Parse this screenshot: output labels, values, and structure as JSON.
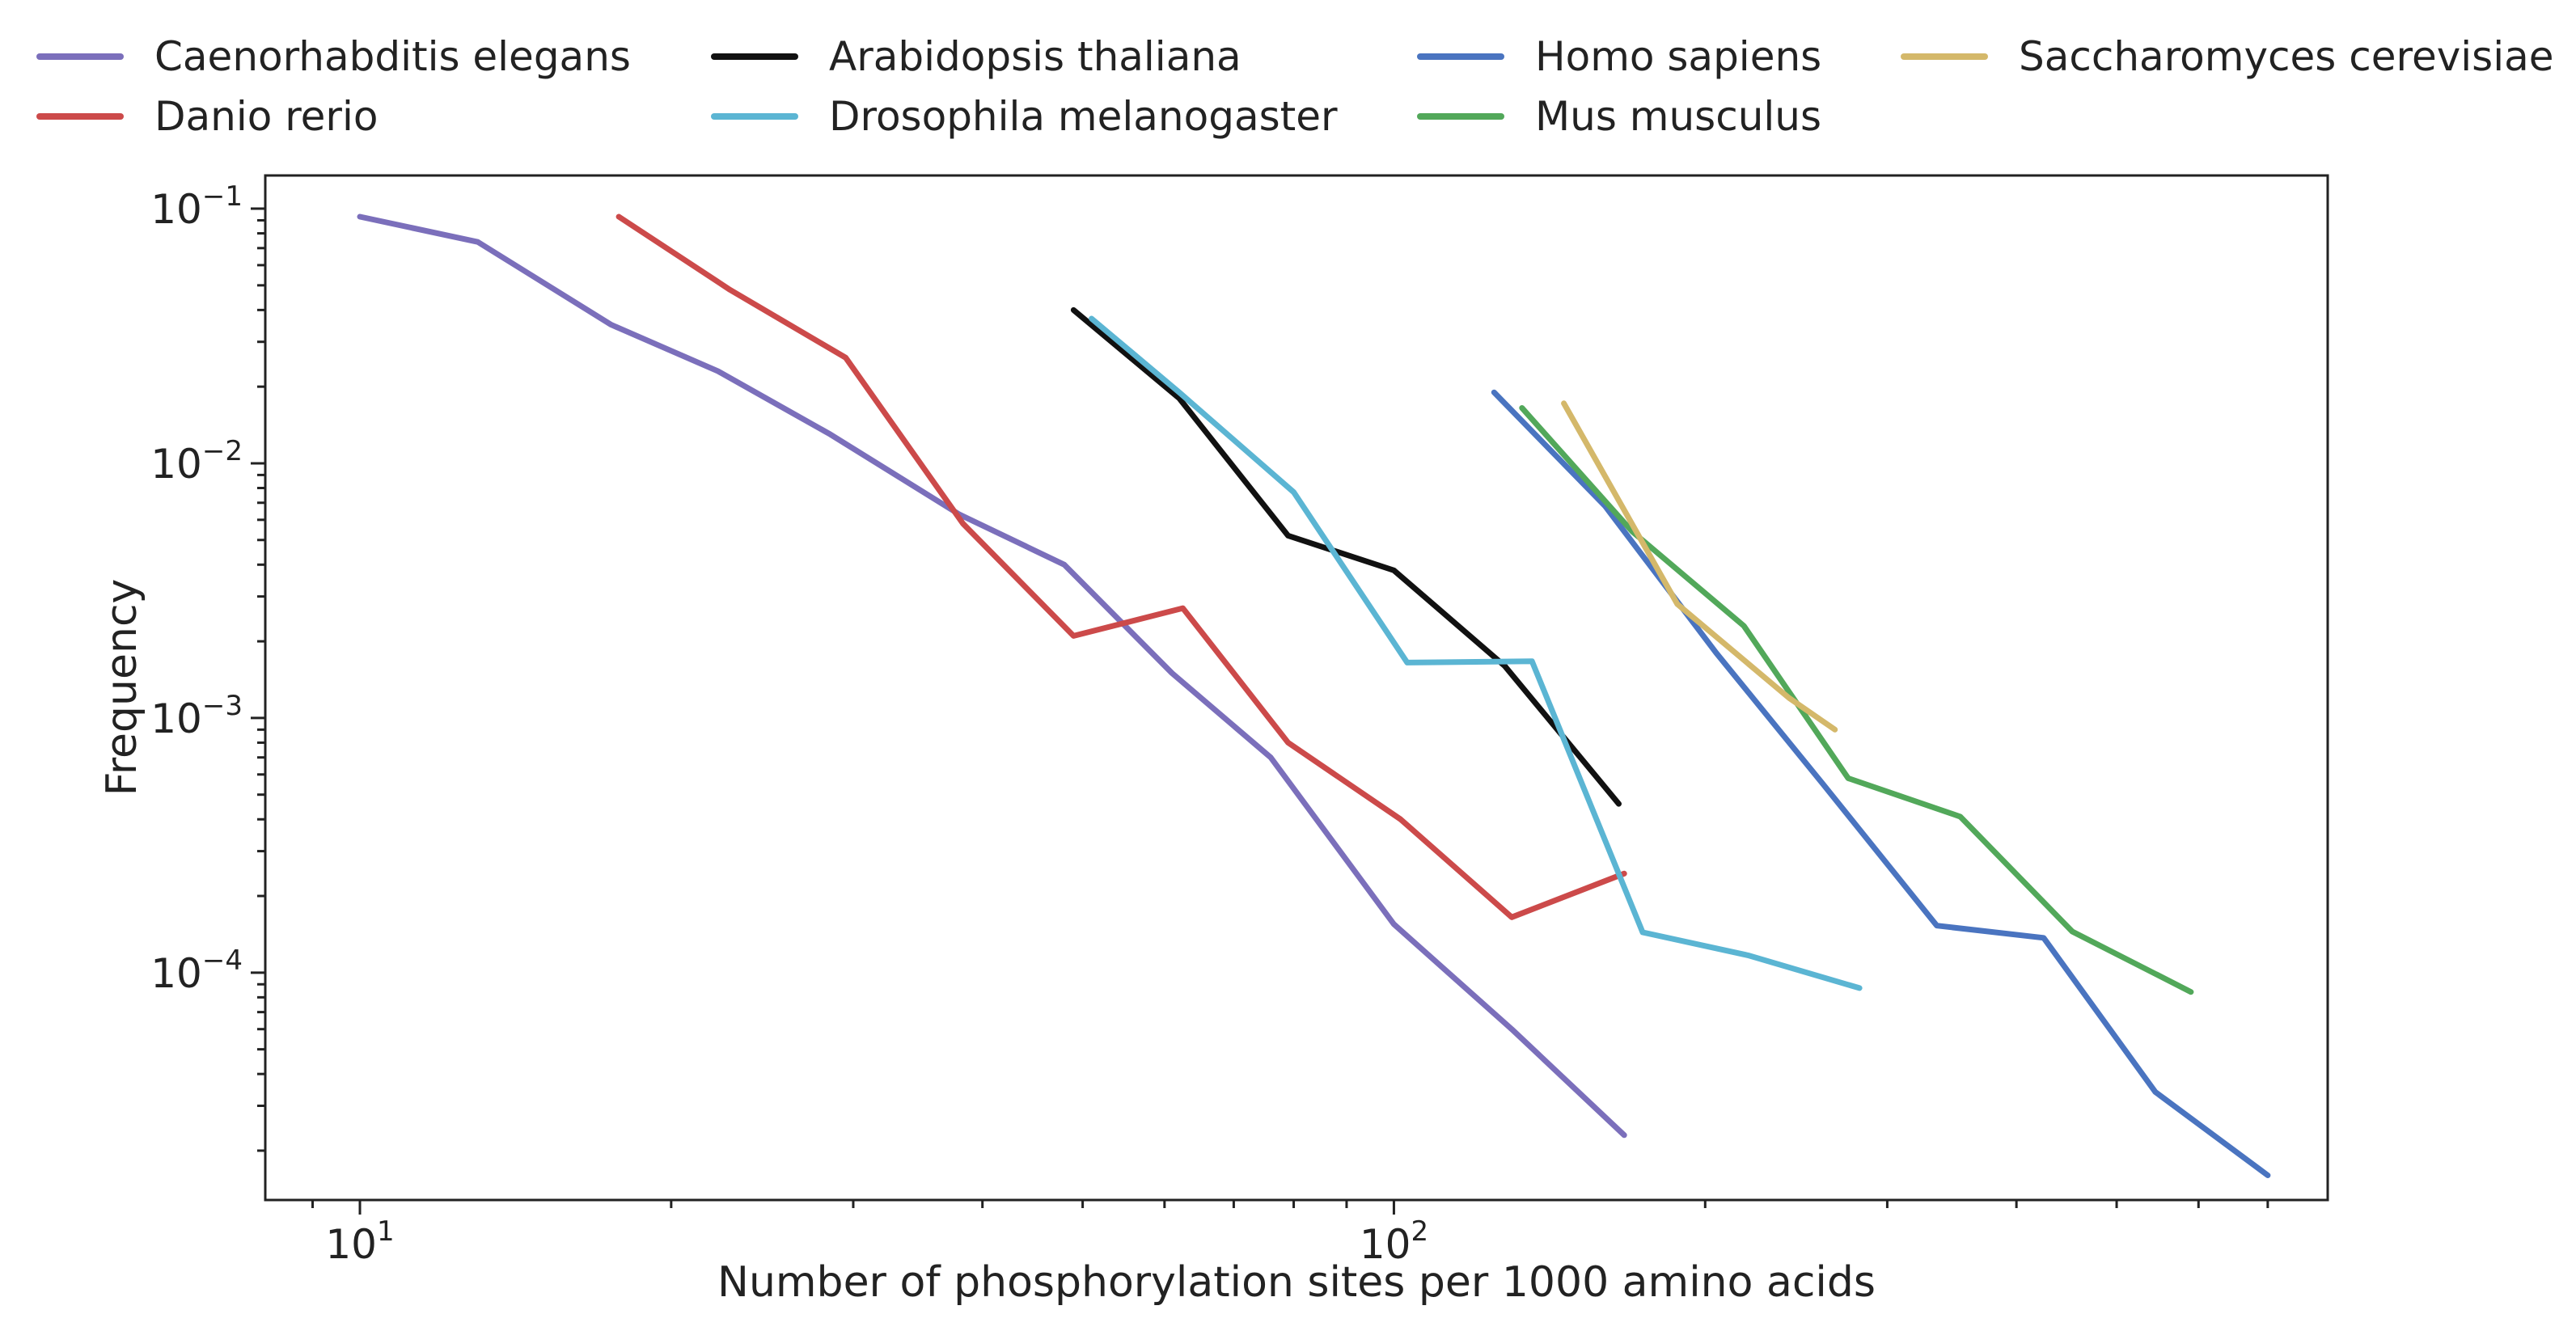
{
  "chart_data": {
    "type": "line",
    "title": "",
    "xlabel": "Number of phosphorylation sites per 1000 amino acids",
    "ylabel": "Frequency",
    "xscale": "log",
    "yscale": "log",
    "xlim": [
      8.1,
      800
    ],
    "ylim": [
      1.28e-05,
      0.135
    ],
    "x_ticks": [
      {
        "value": 10,
        "base": "10",
        "exp": "1"
      },
      {
        "value": 100,
        "base": "10",
        "exp": "2"
      }
    ],
    "y_ticks": [
      {
        "value": 0.1,
        "base": "10",
        "exp": "−1"
      },
      {
        "value": 0.01,
        "base": "10",
        "exp": "−2"
      },
      {
        "value": 0.001,
        "base": "10",
        "exp": "−3"
      },
      {
        "value": 0.0001,
        "base": "10",
        "exp": "−4"
      }
    ],
    "grid": false,
    "legend_position": "top",
    "series": [
      {
        "name": "Caenorhabditis elegans",
        "color": "#7b6fbb",
        "x": [
          10.0,
          13.0,
          17.5,
          22.2,
          28.5,
          38.0,
          48.0,
          61.0,
          76.0,
          100.0,
          130.0,
          167.0
        ],
        "y": [
          0.093,
          0.074,
          0.035,
          0.023,
          0.013,
          0.0063,
          0.004,
          0.0015,
          0.0007,
          0.000155,
          6e-05,
          2.3e-05
        ]
      },
      {
        "name": "Danio rerio",
        "color": "#cc4a4a",
        "x": [
          17.8,
          22.8,
          29.5,
          38.3,
          49.0,
          62.5,
          79.0,
          101.5,
          130.0,
          167.0
        ],
        "y": [
          0.093,
          0.048,
          0.026,
          0.0058,
          0.0021,
          0.0027,
          0.0008,
          0.0004,
          0.000165,
          0.000245
        ]
      },
      {
        "name": "Arabidopsis thaliana",
        "color": "#111111",
        "x": [
          49.0,
          62.0,
          79.0,
          100.0,
          128.0,
          165.0
        ],
        "y": [
          0.04,
          0.018,
          0.0052,
          0.0038,
          0.0016,
          0.00046
        ]
      },
      {
        "name": "Drosophila melanogaster",
        "color": "#5bb5d3",
        "x": [
          51.0,
          62.0,
          80.0,
          103.0,
          136.0,
          174.0,
          220.0,
          282.0
        ],
        "y": [
          0.037,
          0.019,
          0.0077,
          0.00165,
          0.00167,
          0.000144,
          0.000117,
          8.7e-05
        ]
      },
      {
        "name": "Homo sapiens",
        "color": "#4a74c0",
        "x": [
          125.0,
          160.0,
          205.0,
          260.0,
          335.0,
          425.0,
          545.0,
          700.0
        ],
        "y": [
          0.019,
          0.0068,
          0.0018,
          0.00055,
          0.000153,
          0.000137,
          3.4e-05,
          1.6e-05
        ]
      },
      {
        "name": "Mus musculus",
        "color": "#52a85a",
        "x": [
          133.0,
          170.0,
          218.0,
          275.0,
          353.0,
          453.0,
          590.0
        ],
        "y": [
          0.0165,
          0.0054,
          0.0023,
          0.00058,
          0.00041,
          0.000145,
          8.4e-05
        ]
      },
      {
        "name": "Saccharomyces cerevisiae",
        "color": "#d4b86a",
        "x": [
          146.0,
          188.0,
          241.0,
          267.0
        ],
        "y": [
          0.0172,
          0.0028,
          0.0012,
          0.0009
        ]
      }
    ]
  }
}
